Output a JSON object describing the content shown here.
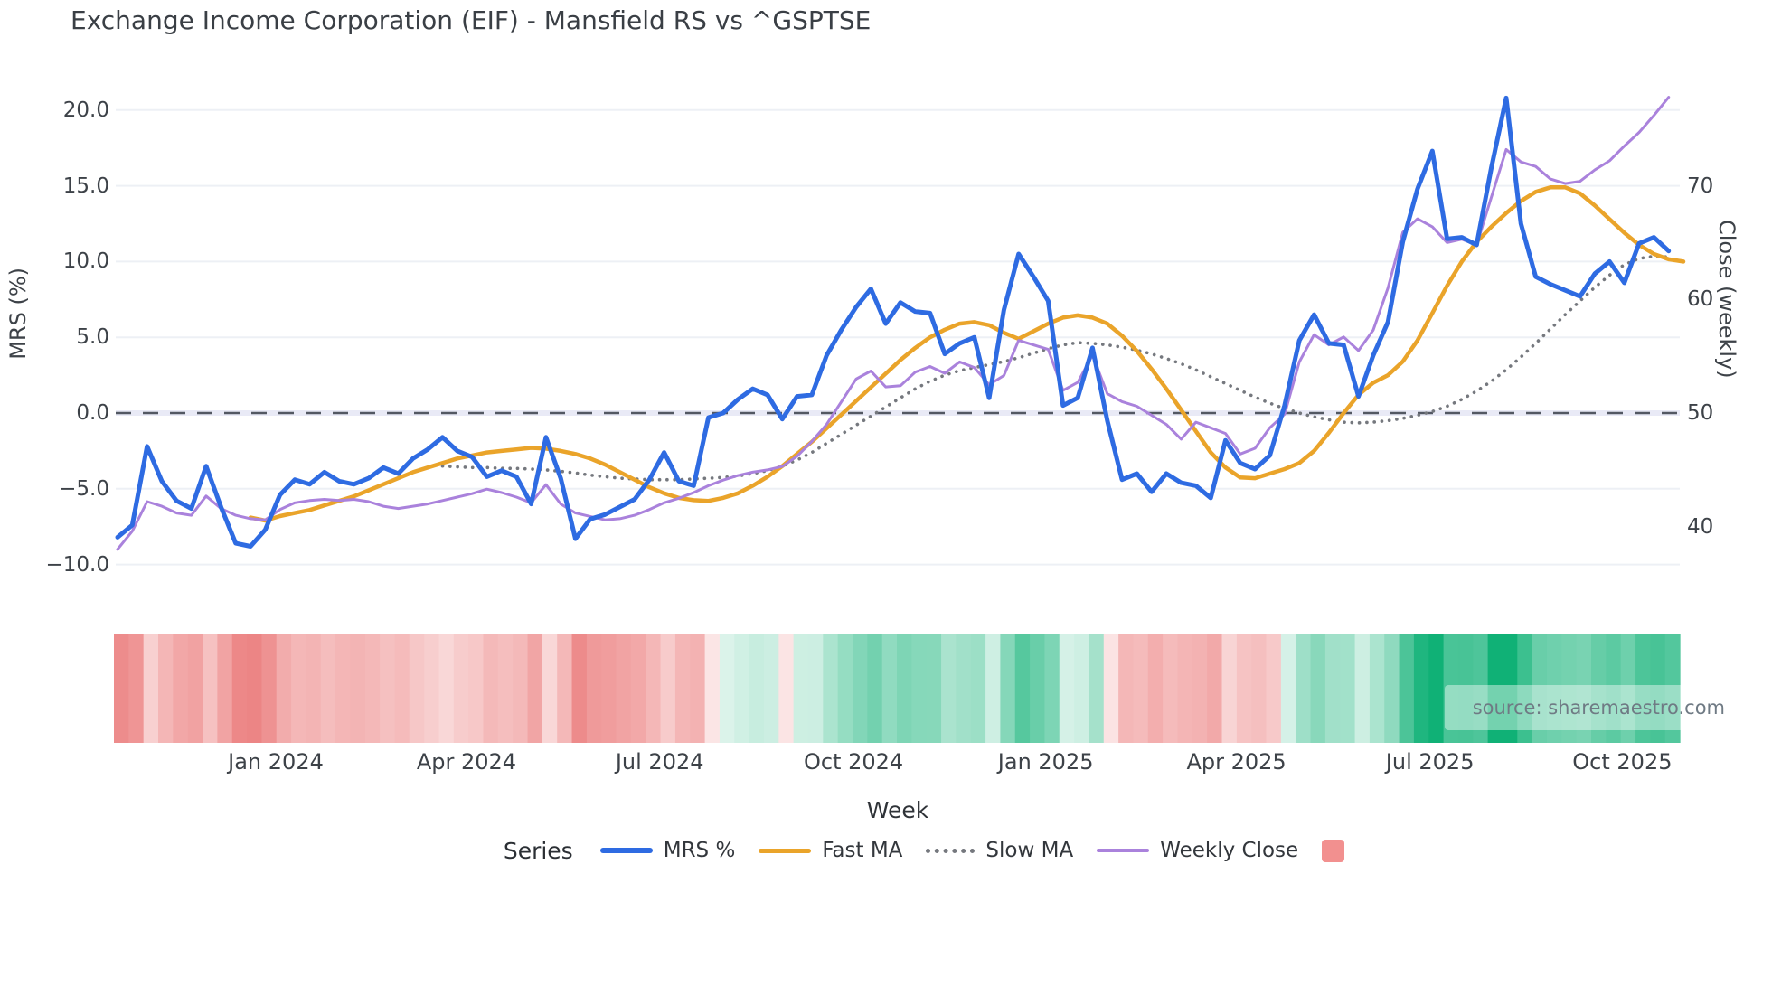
{
  "ui": {
    "title": "Exchange Income Corporation (EIF) - Mansfield RS vs ^GSPTSE",
    "source_note": "source: sharemaestro.com",
    "legend": {
      "title": "Series",
      "items": [
        {
          "label": "MRS %",
          "color": "#2e6be2",
          "style": "solid"
        },
        {
          "label": "Fast MA",
          "color": "#eaa42a",
          "style": "solid"
        },
        {
          "label": "Slow MA",
          "color": "#75787e",
          "style": "dotted"
        },
        {
          "label": "Weekly Close",
          "color": "#aa82dc",
          "style": "solid"
        },
        {
          "label": "",
          "color": "#f2908f",
          "style": "square"
        }
      ]
    }
  },
  "chart_data": {
    "type": "line",
    "title": "Exchange Income Corporation (EIF) - Mansfield RS vs ^GSPTSE",
    "x_unit": "weekly, Oct 2023 - Oct 2025",
    "grid": true,
    "legend_position": "bottom",
    "x_axis": {
      "label": "Week",
      "ticks": [
        {
          "pos": 10.71,
          "label": "Jan 2024"
        },
        {
          "pos": 23.62,
          "label": "Apr 2024"
        },
        {
          "pos": 36.7,
          "label": "Jul 2024"
        },
        {
          "pos": 49.82,
          "label": "Oct 2024"
        },
        {
          "pos": 62.83,
          "label": "Jan 2025"
        },
        {
          "pos": 75.74,
          "label": "Apr 2025"
        },
        {
          "pos": 88.84,
          "label": "Jul 2025"
        },
        {
          "pos": 101.86,
          "label": "Oct 2025"
        }
      ]
    },
    "left_axis": {
      "label": "MRS (%)",
      "ylim": [
        -12,
        22
      ],
      "ticks": [
        {
          "v": 20,
          "label": "20.0"
        },
        {
          "v": 15,
          "label": "15.0"
        },
        {
          "v": 10,
          "label": "10.0"
        },
        {
          "v": 5,
          "label": "5.0"
        },
        {
          "v": 0,
          "label": "0.0"
        },
        {
          "v": -5,
          "label": "−5.0"
        },
        {
          "v": -10,
          "label": "−10.0"
        }
      ]
    },
    "right_axis": {
      "label": "Close (weekly)",
      "ylim": [
        36,
        80
      ],
      "ticks": [
        {
          "v": 70,
          "label": "70"
        },
        {
          "v": 60,
          "label": "60"
        },
        {
          "v": 50,
          "label": "50"
        },
        {
          "v": 40,
          "label": "40"
        }
      ]
    },
    "zero_line": {
      "value": 0.0,
      "style": "dashed"
    },
    "series": [
      {
        "name": "MRS %",
        "axis": "left",
        "color": "#2e6be2",
        "line_style": "solid",
        "width": 5,
        "values": [
          -8.2,
          -7.4,
          -2.2,
          -4.5,
          -5.8,
          -6.3,
          -3.5,
          -6.2,
          -8.6,
          -8.8,
          -7.7,
          -5.4,
          -4.4,
          -4.7,
          -3.9,
          -4.5,
          -4.7,
          -4.3,
          -3.6,
          -4.0,
          -3.0,
          -2.4,
          -1.6,
          -2.5,
          -2.9,
          -4.2,
          -3.8,
          -4.2,
          -6.0,
          -1.6,
          -4.3,
          -8.3,
          -7.0,
          -6.7,
          -6.2,
          -5.7,
          -4.4,
          -2.6,
          -4.5,
          -4.8,
          -0.3,
          0.0,
          0.9,
          1.6,
          1.2,
          -0.4,
          1.1,
          1.2,
          3.8,
          5.5,
          7.0,
          8.2,
          5.9,
          7.3,
          6.7,
          6.6,
          3.9,
          4.6,
          5.0,
          1.0,
          6.8,
          10.5,
          9.0,
          7.4,
          0.5,
          1.0,
          4.3,
          -0.5,
          -4.4,
          -4.0,
          -5.2,
          -4.0,
          -4.6,
          -4.8,
          -5.6,
          -1.8,
          -3.3,
          -3.7,
          -2.8,
          0.5,
          4.8,
          6.5,
          4.6,
          4.5,
          1.1,
          3.8,
          6.0,
          11.3,
          14.8,
          17.3,
          11.5,
          11.6,
          11.1,
          16.2,
          20.8,
          12.5,
          9.0,
          8.5,
          8.1,
          7.7,
          9.2,
          10.0,
          8.6,
          11.2,
          11.6,
          10.7
        ]
      },
      {
        "name": "Fast MA",
        "axis": "left",
        "color": "#eaa42a",
        "line_style": "solid",
        "width": 4.5,
        "values": [
          null,
          null,
          null,
          null,
          null,
          null,
          null,
          null,
          null,
          -6.9,
          -7.1,
          -6.8,
          -6.6,
          -6.4,
          -6.1,
          -5.8,
          -5.5,
          -5.1,
          -4.7,
          -4.3,
          -3.9,
          -3.6,
          -3.3,
          -3.0,
          -2.8,
          -2.6,
          -2.5,
          -2.4,
          -2.3,
          -2.35,
          -2.5,
          -2.7,
          -3.0,
          -3.4,
          -3.9,
          -4.4,
          -4.9,
          -5.3,
          -5.6,
          -5.75,
          -5.8,
          -5.6,
          -5.3,
          -4.8,
          -4.2,
          -3.5,
          -2.7,
          -1.9,
          -1.0,
          -0.1,
          0.8,
          1.7,
          2.6,
          3.5,
          4.3,
          5.0,
          5.5,
          5.9,
          6.0,
          5.8,
          5.3,
          4.9,
          5.4,
          5.9,
          6.3,
          6.45,
          6.3,
          5.9,
          5.1,
          4.1,
          2.9,
          1.6,
          0.2,
          -1.2,
          -2.6,
          -3.6,
          -4.25,
          -4.3,
          -4.0,
          -3.7,
          -3.3,
          -2.5,
          -1.3,
          0.0,
          1.2,
          2.0,
          2.5,
          3.4,
          4.8,
          6.6,
          8.4,
          10.0,
          11.3,
          12.3,
          13.2,
          14.0,
          14.6,
          14.9,
          14.9,
          14.5,
          13.7,
          12.8,
          11.9,
          11.1,
          10.5,
          10.15,
          10.0
        ]
      },
      {
        "name": "Slow MA",
        "axis": "left",
        "color": "#75787e",
        "line_style": "dotted",
        "width": 3.6,
        "values": [
          null,
          null,
          null,
          null,
          null,
          null,
          null,
          null,
          null,
          null,
          null,
          null,
          null,
          null,
          null,
          null,
          null,
          null,
          null,
          null,
          null,
          null,
          -3.5,
          -3.55,
          -3.6,
          -3.6,
          -3.65,
          -3.65,
          -3.7,
          -3.75,
          -3.85,
          -3.95,
          -4.1,
          -4.2,
          -4.3,
          -4.35,
          -4.4,
          -4.4,
          -4.4,
          -4.35,
          -4.3,
          -4.25,
          -4.15,
          -4.0,
          -3.8,
          -3.5,
          -3.1,
          -2.6,
          -2.0,
          -1.4,
          -0.8,
          -0.2,
          0.4,
          1.0,
          1.6,
          2.1,
          2.5,
          2.8,
          3.0,
          3.2,
          3.4,
          3.65,
          3.95,
          4.25,
          4.5,
          4.65,
          4.6,
          4.5,
          4.35,
          4.15,
          3.9,
          3.6,
          3.25,
          2.85,
          2.4,
          1.95,
          1.5,
          1.05,
          0.65,
          0.3,
          0.0,
          -0.25,
          -0.45,
          -0.6,
          -0.65,
          -0.6,
          -0.5,
          -0.35,
          -0.15,
          0.1,
          0.45,
          0.9,
          1.45,
          2.1,
          2.85,
          3.7,
          4.6,
          5.55,
          6.5,
          7.4,
          8.3,
          9.1,
          9.8,
          10.2,
          10.35,
          10.3
        ]
      },
      {
        "name": "Weekly Close",
        "axis": "right",
        "color": "#aa82dc",
        "line_style": "solid",
        "width": 3,
        "values": [
          38.0,
          39.6,
          42.2,
          41.8,
          41.2,
          41.0,
          42.7,
          41.6,
          41.0,
          40.7,
          40.6,
          41.5,
          42.1,
          42.3,
          42.4,
          42.3,
          42.4,
          42.2,
          41.8,
          41.6,
          41.8,
          42.0,
          42.3,
          42.6,
          42.9,
          43.3,
          43.0,
          42.6,
          42.1,
          43.7,
          42.0,
          41.2,
          40.9,
          40.6,
          40.7,
          41.0,
          41.5,
          42.1,
          42.5,
          43.0,
          43.6,
          44.1,
          44.5,
          44.8,
          45.0,
          45.3,
          46.2,
          47.5,
          49.0,
          51.0,
          53.0,
          53.7,
          52.3,
          52.4,
          53.6,
          54.1,
          53.5,
          54.5,
          54.0,
          52.5,
          53.3,
          56.4,
          56.0,
          55.6,
          52.0,
          52.7,
          55.1,
          51.7,
          51.0,
          50.6,
          49.8,
          49.0,
          47.7,
          49.2,
          48.7,
          48.2,
          46.4,
          46.9,
          48.7,
          49.9,
          54.5,
          56.9,
          56.0,
          56.7,
          55.5,
          57.3,
          61.0,
          65.9,
          67.1,
          66.4,
          65.0,
          65.3,
          64.8,
          69.0,
          73.2,
          72.1,
          71.7,
          70.6,
          70.2,
          70.4,
          71.4,
          72.2,
          73.5,
          74.7,
          76.2,
          77.8
        ]
      }
    ],
    "heatmap": {
      "description": "weekly regime strip, red negative to green positive, driven by MRS %",
      "signal_series": "MRS %",
      "negative_color": "#ec8383",
      "positive_color": "#10b176"
    }
  }
}
